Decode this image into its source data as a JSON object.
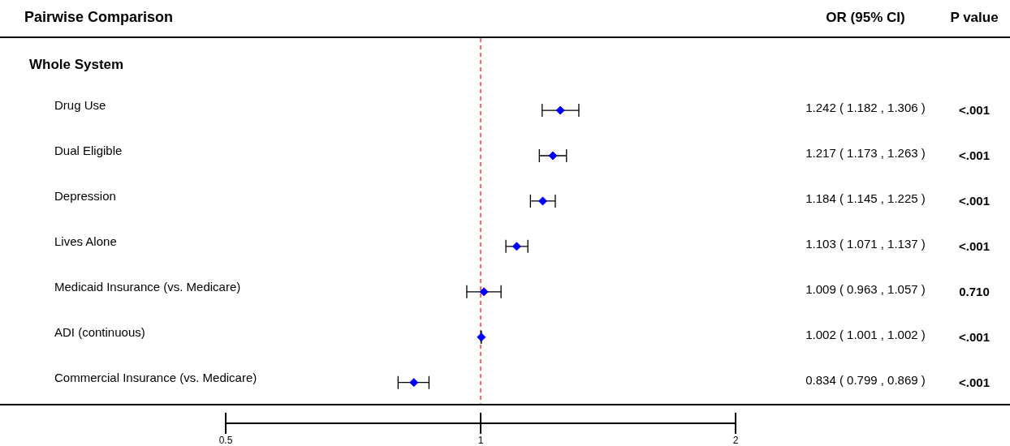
{
  "chart_data": {
    "type": "scatter",
    "orientation": "horizontal",
    "title": "Pairwise Comparison",
    "subtitle": "Whole System",
    "categories": [
      "Drug Use",
      "Dual Eligible",
      "Depression",
      "Lives Alone",
      "Medicaid Insurance (vs. Medicare)",
      "ADI (continuous)",
      "Commercial Insurance (vs. Medicare)"
    ],
    "series": [
      {
        "color": "#0000ff",
        "values": [
          1.242,
          1.217,
          1.184,
          1.103,
          1.009,
          1.002,
          0.834
        ],
        "errors": [
          [
            1.182,
            1.306
          ],
          [
            1.173,
            1.263
          ],
          [
            1.145,
            1.225
          ],
          [
            1.071,
            1.137
          ],
          [
            0.963,
            1.057
          ],
          [
            1.001,
            1.002
          ],
          [
            0.799,
            0.869
          ]
        ],
        "value_labels": [
          "1.242 ( 1.182 , 1.306 )",
          "1.217 ( 1.173 , 1.263 )",
          "1.184 ( 1.145 , 1.225 )",
          "1.103 ( 1.071 , 1.137 )",
          "1.009 ( 0.963 , 1.057 )",
          "1.002 ( 1.001 , 1.002 )",
          "0.834 ( 0.799 , 0.869 )"
        ]
      }
    ],
    "log": "x",
    "xlim": [
      0.5,
      2
    ],
    "xticks": [
      0.5,
      1,
      2
    ],
    "marker": "diamond",
    "legend": false,
    "ref_lines": [
      {
        "axis": "x",
        "value": 1,
        "color": "#ff0000",
        "line_style": "dashed"
      }
    ],
    "annotations": [
      "OR (95% CI)",
      "P value",
      "<.001",
      "<.001",
      "<.001",
      "<.001",
      "0.710",
      "<.001",
      "<.001"
    ]
  }
}
